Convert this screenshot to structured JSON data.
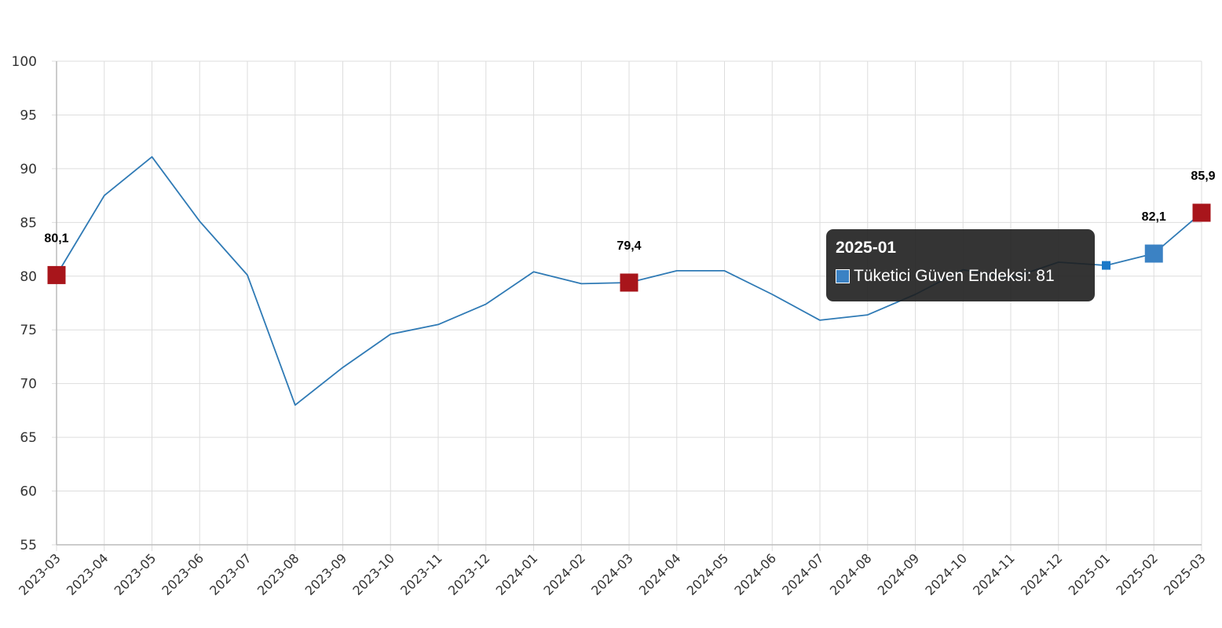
{
  "chart_data": {
    "type": "line",
    "categories": [
      "2023-03",
      "2023-04",
      "2023-05",
      "2023-06",
      "2023-07",
      "2023-08",
      "2023-09",
      "2023-10",
      "2023-11",
      "2023-12",
      "2024-01",
      "2024-02",
      "2024-03",
      "2024-04",
      "2024-05",
      "2024-06",
      "2024-07",
      "2024-08",
      "2024-09",
      "2024-10",
      "2024-11",
      "2024-12",
      "2025-01",
      "2025-02",
      "2025-03"
    ],
    "series": [
      {
        "name": "Tüketici Güven Endeksi",
        "color": "#2f7ab5",
        "values": [
          80.1,
          87.5,
          91.1,
          85.1,
          80.1,
          68.0,
          71.5,
          74.6,
          75.5,
          77.4,
          80.4,
          79.3,
          79.4,
          80.5,
          80.5,
          78.3,
          75.9,
          76.4,
          78.3,
          80.6,
          79.8,
          81.3,
          81.0,
          82.1,
          85.9
        ]
      }
    ],
    "highlighted_points": [
      {
        "category": "2023-03",
        "label": "80,1",
        "color": "#a8151b"
      },
      {
        "category": "2024-03",
        "label": "79,4",
        "color": "#a8151b"
      },
      {
        "category": "2025-02",
        "label": "82,1",
        "color": "#3b82c4"
      },
      {
        "category": "2025-03",
        "label": "85,9",
        "color": "#a8151b"
      }
    ],
    "active_point": {
      "category": "2025-01",
      "color": "#1a78c8"
    },
    "ylim": [
      55,
      100
    ],
    "yticks": [
      55,
      60,
      65,
      70,
      75,
      80,
      85,
      90,
      95,
      100
    ],
    "grid": true,
    "title": "",
    "xlabel": "",
    "ylabel": ""
  },
  "tooltip": {
    "title": "2025-01",
    "series_label": "Tüketici Güven Endeksi: 81",
    "swatch_color": "#3b82c4"
  }
}
